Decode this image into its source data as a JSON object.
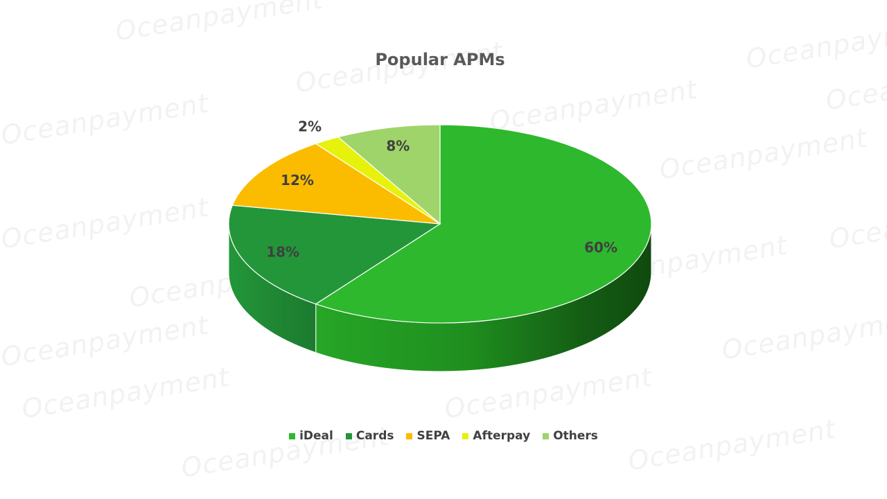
{
  "watermark": {
    "text": "Oceanpayment"
  },
  "chart_data": {
    "type": "pie",
    "title": "Popular APMs",
    "categories": [
      "iDeal",
      "Cards",
      "SEPA",
      "Afterpay",
      "Others"
    ],
    "values": [
      60,
      18,
      12,
      2,
      8
    ],
    "data_labels": [
      "60%",
      "18%",
      "12%",
      "2%",
      "8%"
    ],
    "colors": [
      "#2eb82e",
      "#23963a",
      "#fbbc00",
      "#e6f20c",
      "#9fd46a"
    ],
    "side_colors": [
      "#1e8a1e",
      "#1c7a2e",
      "#c08c00",
      "#b2bc00",
      "#7aa84e"
    ],
    "legend_position": "bottom",
    "style": "3d"
  }
}
